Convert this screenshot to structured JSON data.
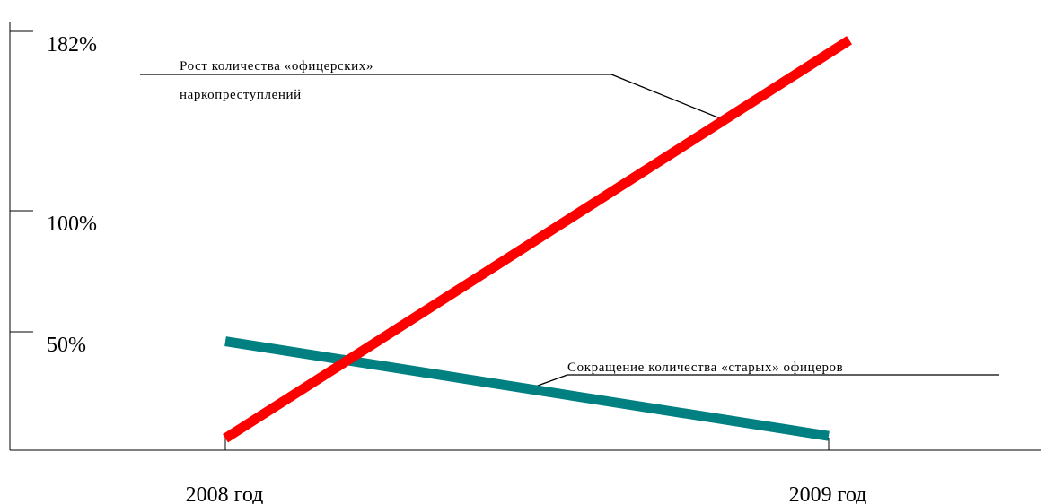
{
  "chart_data": {
    "type": "line",
    "title": "",
    "xlabel": "",
    "ylabel": "",
    "categories": [
      "2008 год",
      "2009 год"
    ],
    "y_ticks": [
      {
        "value": 50,
        "label": "50%"
      },
      {
        "value": 100,
        "label": "100%"
      },
      {
        "value": 182,
        "label": "182%"
      }
    ],
    "series": [
      {
        "values": [
          5,
          178
        ],
        "color": "#ff0000",
        "annotation_lines": [
          "Рост количества «офицерских»",
          "наркопреступлений"
        ]
      },
      {
        "values": [
          46,
          6
        ],
        "color": "#008080",
        "annotation_lines": [
          "Сокращение  количества  «старых» офицеров"
        ]
      }
    ],
    "legend": "none",
    "grid": false
  }
}
